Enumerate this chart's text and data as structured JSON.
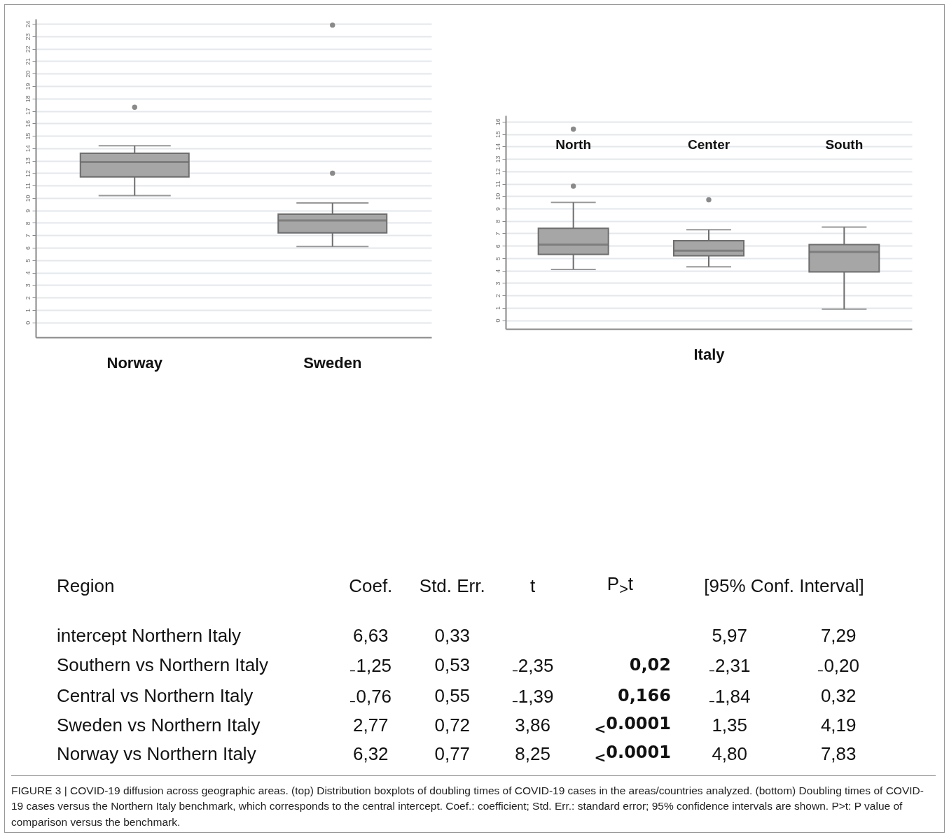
{
  "chart_data": [
    {
      "type": "box",
      "categories": [
        "Norway",
        "Sweden"
      ],
      "color": "#a6a6a6",
      "ylim": [
        -1.2,
        24.4
      ],
      "yticks": [
        0,
        1,
        2,
        3,
        4,
        5,
        6,
        7,
        8,
        9,
        10,
        11,
        12,
        13,
        14,
        15,
        16,
        17,
        18,
        19,
        20,
        21,
        22,
        23,
        24
      ],
      "grid": "y",
      "boxes": [
        {
          "low": 10.2,
          "q1": 11.7,
          "median": 12.9,
          "q3": 13.6,
          "high": 14.2,
          "outliers": [
            17.3
          ]
        },
        {
          "low": 6.1,
          "q1": 7.2,
          "median": 8.2,
          "q3": 8.7,
          "high": 9.6,
          "outliers": [
            12.0,
            23.9
          ]
        }
      ]
    },
    {
      "type": "box",
      "categories": [
        "North",
        "Center",
        "South"
      ],
      "xlabel": "Italy",
      "tick_labels": "y",
      "color": "#a6a6a6",
      "ylim": [
        -0.7,
        16.5
      ],
      "yticks": [
        0,
        1,
        2,
        3,
        4,
        5,
        6,
        7,
        8,
        9,
        10,
        11,
        12,
        13,
        14,
        15,
        16
      ],
      "grid": "y",
      "boxes": [
        {
          "low": 4.1,
          "q1": 5.3,
          "median": 6.1,
          "q3": 7.4,
          "high": 9.5,
          "outliers": [
            10.8,
            15.4
          ]
        },
        {
          "low": 4.3,
          "q1": 5.2,
          "median": 5.6,
          "q3": 6.4,
          "high": 7.3,
          "outliers": [
            9.7
          ]
        },
        {
          "low": 0.9,
          "q1": 3.9,
          "median": 5.5,
          "q3": 6.1,
          "high": 7.5
        }
      ]
    },
    {
      "type": "other",
      "annotations": [
        "Region\tCoef.\tStd. Err.\tt\tP$_{>}$t\t[95% Conf. Interval]",
        "intercept Northern Italy\t6,63\t0,33\t\t\t5,97\t7,29",
        "Southern vs Northern Italy\t₋1,25\t0,53\t₋2,35\t0,02\t₋2,31\t₋0,20",
        "Central vs Northern Italy\t₋0,76\t0,55\t₋1,39\t0,166\t₋1,84\t0,32",
        "Sweden vs Northern Italy\t2,77\t0,72\t3,86\t$_{<}$0.0001\t1,35\t4,19",
        "Norway vs Northern Italy\t6,32\t0,77\t8,25\t$_{<}$0.0001\t4,80\t7,83",
        "FIGURE 3 | COVID-19 diffusion across geographic areas. (top) Distribution boxplots of doubling times of COVID-19 cases in the areas/countries analyzed. (bottom) Doubling times of COVID-19 cases versus the Northern Italy benchmark, which corresponds to the central intercept. Coef.: coefficient; Std. Err.: standard error; 95% confidence intervals are shown. P>t: P value of comparison versus the benchmark."
      ]
    }
  ]
}
